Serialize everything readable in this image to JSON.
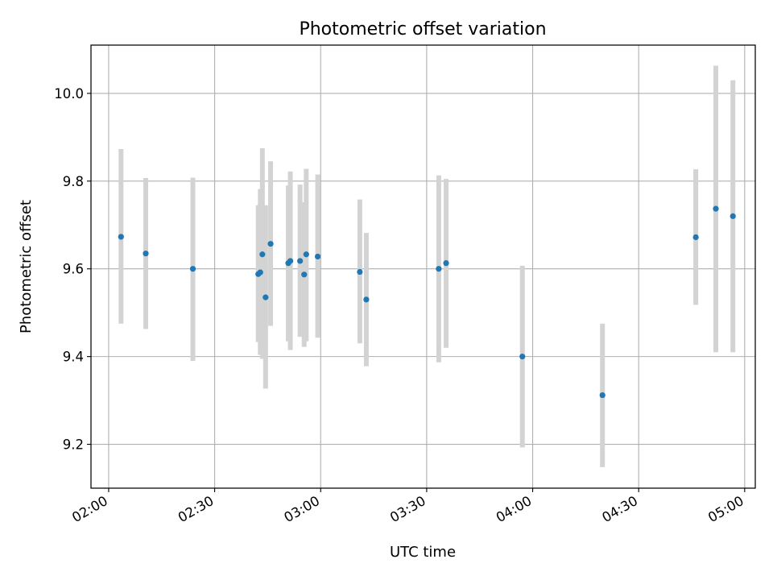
{
  "chart_data": {
    "type": "scatter",
    "title": "Photometric offset variation",
    "xlabel": "UTC time",
    "ylabel": "Photometric offset",
    "xlim": [
      "01:55",
      "05:03"
    ],
    "ylim": [
      9.1,
      10.11
    ],
    "x_ticks": [
      "02:00",
      "02:30",
      "03:00",
      "03:30",
      "04:00",
      "04:30",
      "05:00"
    ],
    "y_ticks": [
      9.2,
      9.4,
      9.6,
      9.8,
      10.0
    ],
    "y_tick_labels": [
      "9.2",
      "9.4",
      "9.6",
      "9.8",
      "10.0"
    ],
    "grid": true,
    "colors": {
      "point": "#1f77b4",
      "errorbar": "#d3d3d3",
      "grid": "#b0b0b0"
    },
    "points": [
      {
        "time": "02:03:30",
        "y": 9.673,
        "ylow": 9.475,
        "yhigh": 9.873
      },
      {
        "time": "02:10:30",
        "y": 9.635,
        "ylow": 9.463,
        "yhigh": 9.807
      },
      {
        "time": "02:23:50",
        "y": 9.6,
        "ylow": 9.39,
        "yhigh": 9.808
      },
      {
        "time": "02:42:20",
        "y": 9.588,
        "ylow": 9.433,
        "yhigh": 9.745
      },
      {
        "time": "02:42:55",
        "y": 9.592,
        "ylow": 9.404,
        "yhigh": 9.782
      },
      {
        "time": "02:43:30",
        "y": 9.633,
        "ylow": 9.395,
        "yhigh": 9.875
      },
      {
        "time": "02:44:25",
        "y": 9.535,
        "ylow": 9.327,
        "yhigh": 9.745
      },
      {
        "time": "02:45:50",
        "y": 9.657,
        "ylow": 9.47,
        "yhigh": 9.845
      },
      {
        "time": "02:50:50",
        "y": 9.613,
        "ylow": 9.435,
        "yhigh": 9.79
      },
      {
        "time": "02:51:25",
        "y": 9.618,
        "ylow": 9.415,
        "yhigh": 9.822
      },
      {
        "time": "02:54:10",
        "y": 9.618,
        "ylow": 9.445,
        "yhigh": 9.792
      },
      {
        "time": "02:55:20",
        "y": 9.587,
        "ylow": 9.422,
        "yhigh": 9.752
      },
      {
        "time": "02:55:55",
        "y": 9.633,
        "ylow": 9.435,
        "yhigh": 9.828
      },
      {
        "time": "02:59:10",
        "y": 9.628,
        "ylow": 9.443,
        "yhigh": 9.815
      },
      {
        "time": "03:11:05",
        "y": 9.593,
        "ylow": 9.43,
        "yhigh": 9.758
      },
      {
        "time": "03:12:55",
        "y": 9.53,
        "ylow": 9.378,
        "yhigh": 9.682
      },
      {
        "time": "03:33:25",
        "y": 9.6,
        "ylow": 9.387,
        "yhigh": 9.813
      },
      {
        "time": "03:35:30",
        "y": 9.613,
        "ylow": 9.42,
        "yhigh": 9.805
      },
      {
        "time": "03:57:05",
        "y": 9.4,
        "ylow": 9.193,
        "yhigh": 9.607
      },
      {
        "time": "04:19:45",
        "y": 9.312,
        "ylow": 9.148,
        "yhigh": 9.475
      },
      {
        "time": "04:46:10",
        "y": 9.672,
        "ylow": 9.518,
        "yhigh": 9.827
      },
      {
        "time": "04:51:50",
        "y": 9.737,
        "ylow": 9.41,
        "yhigh": 10.063
      },
      {
        "time": "04:56:40",
        "y": 9.72,
        "ylow": 9.41,
        "yhigh": 10.03
      }
    ]
  }
}
